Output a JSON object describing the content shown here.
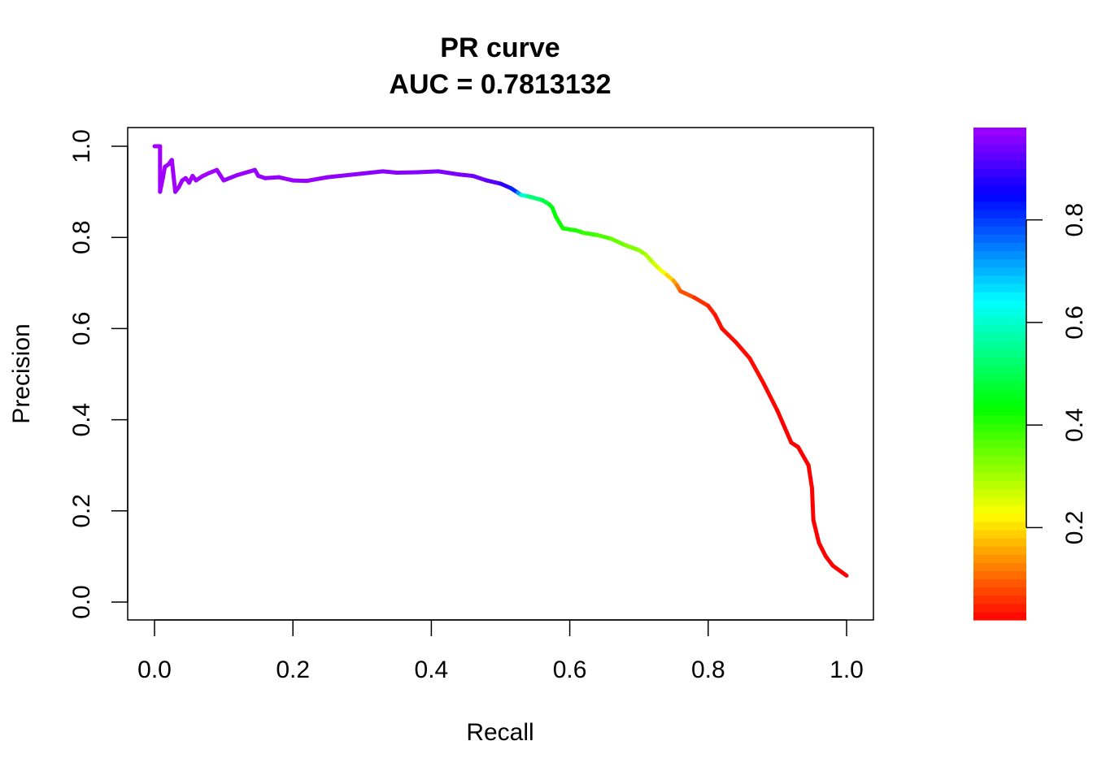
{
  "chart_data": {
    "type": "line",
    "title": "PR curve",
    "subtitle": "AUC = 0.7813132",
    "xlabel": "Recall",
    "ylabel": "Precision",
    "xlim": [
      0,
      1
    ],
    "ylim": [
      0,
      1
    ],
    "grid": false,
    "x_ticks": [
      0.0,
      0.2,
      0.4,
      0.6,
      0.8,
      1.0
    ],
    "y_ticks": [
      0.0,
      0.2,
      0.4,
      0.6,
      0.8,
      1.0
    ],
    "x_tick_labels": [
      "0.0",
      "0.2",
      "0.4",
      "0.6",
      "0.8",
      "1.0"
    ],
    "y_tick_labels": [
      "0.0",
      "0.2",
      "0.4",
      "0.6",
      "0.8",
      "1.0"
    ],
    "series": [
      {
        "points": [
          [
            0.0,
            1.0,
            0.99
          ],
          [
            0.008,
            1.0,
            0.99
          ],
          [
            0.008,
            0.9,
            0.99
          ],
          [
            0.012,
            0.93,
            0.99
          ],
          [
            0.015,
            0.955,
            0.99
          ],
          [
            0.02,
            0.96,
            0.99
          ],
          [
            0.025,
            0.97,
            0.99
          ],
          [
            0.03,
            0.9,
            0.99
          ],
          [
            0.035,
            0.91,
            0.99
          ],
          [
            0.04,
            0.925,
            0.98
          ],
          [
            0.045,
            0.93,
            0.98
          ],
          [
            0.05,
            0.92,
            0.98
          ],
          [
            0.055,
            0.935,
            0.98
          ],
          [
            0.06,
            0.925,
            0.98
          ],
          [
            0.07,
            0.935,
            0.98
          ],
          [
            0.08,
            0.942,
            0.98
          ],
          [
            0.09,
            0.948,
            0.98
          ],
          [
            0.1,
            0.925,
            0.97
          ],
          [
            0.12,
            0.937,
            0.97
          ],
          [
            0.145,
            0.948,
            0.97
          ],
          [
            0.15,
            0.935,
            0.97
          ],
          [
            0.16,
            0.93,
            0.97
          ],
          [
            0.18,
            0.932,
            0.97
          ],
          [
            0.2,
            0.925,
            0.97
          ],
          [
            0.22,
            0.924,
            0.97
          ],
          [
            0.25,
            0.932,
            0.97
          ],
          [
            0.3,
            0.94,
            0.96
          ],
          [
            0.33,
            0.945,
            0.96
          ],
          [
            0.35,
            0.942,
            0.96
          ],
          [
            0.38,
            0.943,
            0.96
          ],
          [
            0.41,
            0.945,
            0.95
          ],
          [
            0.44,
            0.938,
            0.95
          ],
          [
            0.46,
            0.935,
            0.94
          ],
          [
            0.48,
            0.925,
            0.93
          ],
          [
            0.5,
            0.918,
            0.91
          ],
          [
            0.515,
            0.908,
            0.86
          ],
          [
            0.525,
            0.898,
            0.78
          ],
          [
            0.53,
            0.893,
            0.65
          ],
          [
            0.54,
            0.89,
            0.56
          ],
          [
            0.56,
            0.882,
            0.5
          ],
          [
            0.57,
            0.873,
            0.47
          ],
          [
            0.575,
            0.865,
            0.45
          ],
          [
            0.58,
            0.845,
            0.43
          ],
          [
            0.59,
            0.82,
            0.42
          ],
          [
            0.61,
            0.815,
            0.41
          ],
          [
            0.62,
            0.81,
            0.4
          ],
          [
            0.64,
            0.805,
            0.38
          ],
          [
            0.66,
            0.797,
            0.36
          ],
          [
            0.68,
            0.783,
            0.34
          ],
          [
            0.7,
            0.772,
            0.32
          ],
          [
            0.71,
            0.762,
            0.3
          ],
          [
            0.72,
            0.745,
            0.28
          ],
          [
            0.73,
            0.73,
            0.25
          ],
          [
            0.74,
            0.718,
            0.22
          ],
          [
            0.75,
            0.705,
            0.17
          ],
          [
            0.755,
            0.695,
            0.13
          ],
          [
            0.76,
            0.682,
            0.1
          ],
          [
            0.78,
            0.668,
            0.07
          ],
          [
            0.8,
            0.65,
            0.05
          ],
          [
            0.81,
            0.63,
            0.04
          ],
          [
            0.82,
            0.6,
            0.03
          ],
          [
            0.84,
            0.57,
            0.03
          ],
          [
            0.86,
            0.535,
            0.03
          ],
          [
            0.88,
            0.48,
            0.03
          ],
          [
            0.9,
            0.42,
            0.02
          ],
          [
            0.92,
            0.35,
            0.02
          ],
          [
            0.93,
            0.34,
            0.02
          ],
          [
            0.945,
            0.3,
            0.02
          ],
          [
            0.95,
            0.25,
            0.02
          ],
          [
            0.952,
            0.18,
            0.02
          ],
          [
            0.96,
            0.13,
            0.02
          ],
          [
            0.97,
            0.1,
            0.02
          ],
          [
            0.98,
            0.08,
            0.02
          ],
          [
            1.0,
            0.058,
            0.02
          ]
        ]
      }
    ],
    "colorbar": {
      "range": [
        0.02,
        0.98
      ],
      "ticks": [
        0.2,
        0.4,
        0.6,
        0.8
      ],
      "tick_labels": [
        "0.2",
        "0.4",
        "0.6",
        "0.8"
      ],
      "palette": "rainbow-red-to-purple"
    },
    "colors": {
      "axis": "#000000",
      "background": "#ffffff"
    }
  }
}
